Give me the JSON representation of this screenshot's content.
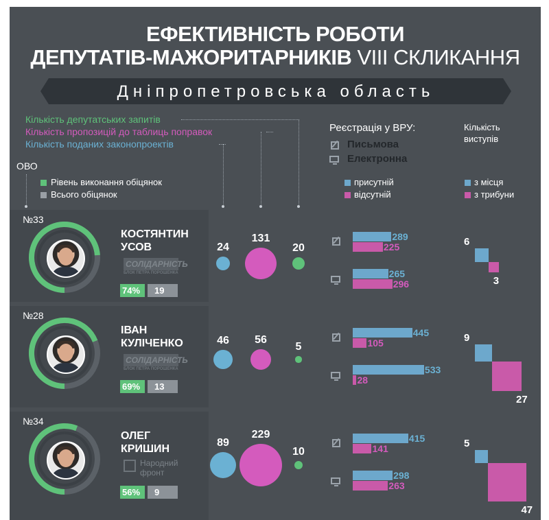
{
  "header": {
    "title_line1": "ЕФЕКТИВНІСТЬ РОБОТИ",
    "title_line2_bold": "ДЕПУТАТІВ-МАЖОРИТАРНИКІВ",
    "title_line2_thin": "VIII СКЛИКАННЯ",
    "region": "Дніпропетровська область"
  },
  "legend": {
    "requests": "Кількість депутатських запитів",
    "proposals": "Кількість пропозицій до таблиць поправок",
    "bills": "Кількість поданих законопроектів",
    "ovo": "ОВО",
    "promises_done": "Рівень виконання обіцянок",
    "promises_total": "Всього обіцянок",
    "registration_title": "Реєстрація у ВРУ:",
    "written": "Письмова",
    "electronic": "Електронна",
    "present": "присутній",
    "absent": "відсутній",
    "speeches_title_1": "Кількість",
    "speeches_title_2": "виступів",
    "from_seat": "з місця",
    "from_tribune": "з трибуни"
  },
  "colors": {
    "green": "#5fc27a",
    "pink": "#d45bbd",
    "blue": "#6bb1d3",
    "bar_blue": "#6da8cc",
    "bar_pink": "#c95aa9",
    "background": "#4a4f54"
  },
  "deputies": [
    {
      "district": "№33",
      "first_name": "КОСТЯНТИН",
      "last_name": "УСОВ",
      "party": "СОЛІДАРНІСТЬ",
      "party_sub": "БЛОК ПЕТРА ПОРОШЕНКА",
      "promise_pct": "74%",
      "promise_fraction": 0.74,
      "promises_total": "19",
      "requests": 24,
      "proposals": 131,
      "bills": 20,
      "written_present": 289,
      "written_absent": 225,
      "electronic_present": 265,
      "electronic_absent": 296,
      "speech_seat": 6,
      "speech_tribune": 3
    },
    {
      "district": "№28",
      "first_name": "ІВАН",
      "last_name": "КУЛІЧЕНКО",
      "party": "СОЛІДАРНІСТЬ",
      "party_sub": "БЛОК ПЕТРА ПОРОШЕНКА",
      "promise_pct": "69%",
      "promise_fraction": 0.69,
      "promises_total": "13",
      "requests": 46,
      "proposals": 56,
      "bills": 5,
      "written_present": 445,
      "written_absent": 105,
      "electronic_present": 533,
      "electronic_absent": 28,
      "speech_seat": 9,
      "speech_tribune": 27
    },
    {
      "district": "№34",
      "first_name": "ОЛЕГ",
      "last_name": "КРИШИН",
      "party": "Народний фронт",
      "party_sub": "",
      "promise_pct": "56%",
      "promise_fraction": 0.56,
      "promises_total": "9",
      "requests": 89,
      "proposals": 229,
      "bills": 10,
      "written_present": 415,
      "written_absent": 141,
      "electronic_present": 298,
      "electronic_absent": 263,
      "speech_seat": 5,
      "speech_tribune": 47
    }
  ]
}
